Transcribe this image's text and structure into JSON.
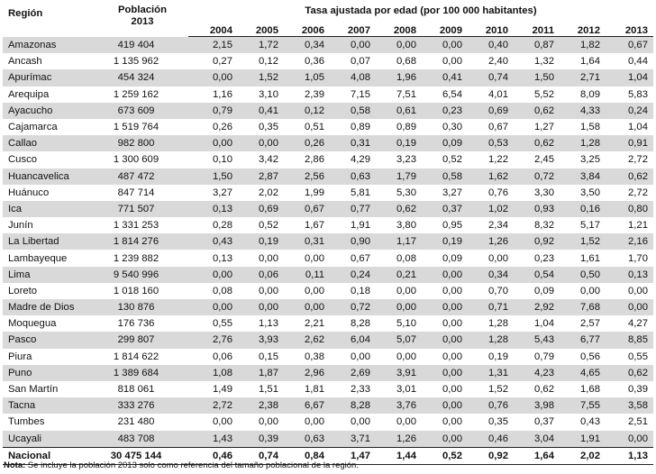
{
  "header": {
    "region_label": "Región",
    "population_label": "Población",
    "population_year": "2013",
    "rate_label": "Tasa ajustada por edad (por 100 000 habitantes)",
    "years": [
      "2004",
      "2005",
      "2006",
      "2007",
      "2008",
      "2009",
      "2010",
      "2011",
      "2012",
      "2013"
    ]
  },
  "rows": [
    {
      "region": "Amazonas",
      "population": "419 404",
      "rates": [
        "2,15",
        "1,72",
        "0,34",
        "0,00",
        "0,00",
        "0,00",
        "0,40",
        "0,87",
        "1,82",
        "0,67"
      ]
    },
    {
      "region": "Ancash",
      "population": "1 135 962",
      "rates": [
        "0,27",
        "0,12",
        "0,36",
        "0,07",
        "0,68",
        "0,00",
        "2,40",
        "1,32",
        "1,64",
        "0,44"
      ]
    },
    {
      "region": "Apurímac",
      "population": "454 324",
      "rates": [
        "0,00",
        "1,52",
        "1,05",
        "4,08",
        "1,96",
        "0,41",
        "0,74",
        "1,50",
        "2,71",
        "1,04"
      ]
    },
    {
      "region": "Arequipa",
      "population": "1 259 162",
      "rates": [
        "1,16",
        "3,10",
        "2,39",
        "7,15",
        "7,51",
        "6,54",
        "4,01",
        "5,52",
        "8,09",
        "5,83"
      ]
    },
    {
      "region": "Ayacucho",
      "population": "673 609",
      "rates": [
        "0,79",
        "0,41",
        "0,12",
        "0,58",
        "0,61",
        "0,23",
        "0,69",
        "0,62",
        "4,33",
        "0,24"
      ]
    },
    {
      "region": "Cajamarca",
      "population": "1 519 764",
      "rates": [
        "0,26",
        "0,35",
        "0,51",
        "0,89",
        "0,89",
        "0,30",
        "0,67",
        "1,27",
        "1,58",
        "1,04"
      ]
    },
    {
      "region": "Callao",
      "population": "982 800",
      "rates": [
        "0,00",
        "0,00",
        "0,26",
        "0,31",
        "0,19",
        "0,09",
        "0,53",
        "0,62",
        "1,28",
        "0,91"
      ]
    },
    {
      "region": "Cusco",
      "population": "1 300 609",
      "rates": [
        "0,10",
        "3,42",
        "2,86",
        "4,29",
        "3,23",
        "0,52",
        "1,22",
        "2,45",
        "3,25",
        "2,72"
      ]
    },
    {
      "region": "Huancavelica",
      "population": "487 472",
      "rates": [
        "1,50",
        "2,87",
        "2,56",
        "0,63",
        "1,79",
        "0,58",
        "1,62",
        "0,72",
        "3,84",
        "0,62"
      ]
    },
    {
      "region": "Huánuco",
      "population": "847 714",
      "rates": [
        "3,27",
        "2,02",
        "1,99",
        "5,81",
        "5,30",
        "3,27",
        "0,76",
        "3,30",
        "3,50",
        "2,72"
      ]
    },
    {
      "region": "Ica",
      "population": "771 507",
      "rates": [
        "0,13",
        "0,69",
        "0,67",
        "0,77",
        "0,62",
        "0,37",
        "1,02",
        "0,93",
        "0,16",
        "0,80"
      ]
    },
    {
      "region": "Junín",
      "population": "1 331 253",
      "rates": [
        "0,28",
        "0,52",
        "1,67",
        "1,91",
        "3,80",
        "0,95",
        "2,34",
        "8,32",
        "5,17",
        "1,21"
      ]
    },
    {
      "region": "La Libertad",
      "population": "1 814 276",
      "rates": [
        "0,43",
        "0,19",
        "0,31",
        "0,90",
        "1,17",
        "0,19",
        "1,26",
        "0,92",
        "1,52",
        "2,16"
      ]
    },
    {
      "region": "Lambayeque",
      "population": "1 239 882",
      "rates": [
        "0,13",
        "0,00",
        "0,00",
        "0,67",
        "0,08",
        "0,09",
        "0,00",
        "0,23",
        "1,61",
        "1,70"
      ]
    },
    {
      "region": "Lima",
      "population": "9 540 996",
      "rates": [
        "0,00",
        "0,06",
        "0,11",
        "0,24",
        "0,21",
        "0,00",
        "0,34",
        "0,54",
        "0,50",
        "0,13"
      ]
    },
    {
      "region": "Loreto",
      "population": "1 018 160",
      "rates": [
        "0,08",
        "0,00",
        "0,00",
        "0,18",
        "0,00",
        "0,00",
        "0,70",
        "0,09",
        "0,00",
        "0,00"
      ]
    },
    {
      "region": "Madre de Dios",
      "population": "130 876",
      "rates": [
        "0,00",
        "0,00",
        "0,00",
        "0,72",
        "0,00",
        "0,00",
        "0,71",
        "2,92",
        "7,68",
        "0,00"
      ]
    },
    {
      "region": "Moquegua",
      "population": "176 736",
      "rates": [
        "0,55",
        "1,13",
        "2,21",
        "8,28",
        "5,10",
        "0,00",
        "1,28",
        "1,04",
        "2,57",
        "4,27"
      ]
    },
    {
      "region": "Pasco",
      "population": "299 807",
      "rates": [
        "2,76",
        "3,93",
        "2,62",
        "6,04",
        "5,07",
        "0,00",
        "1,28",
        "5,43",
        "6,77",
        "8,85"
      ]
    },
    {
      "region": "Piura",
      "population": "1 814 622",
      "rates": [
        "0,06",
        "0,15",
        "0,38",
        "0,00",
        "0,00",
        "0,00",
        "0,19",
        "0,79",
        "0,56",
        "0,55"
      ]
    },
    {
      "region": "Puno",
      "population": "1 389 684",
      "rates": [
        "1,08",
        "1,87",
        "2,96",
        "2,69",
        "3,91",
        "0,00",
        "1,31",
        "4,23",
        "4,65",
        "0,62"
      ]
    },
    {
      "region": "San Martín",
      "population": "818 061",
      "rates": [
        "1,49",
        "1,51",
        "1,81",
        "2,33",
        "3,01",
        "0,00",
        "1,52",
        "0,62",
        "1,68",
        "0,39"
      ]
    },
    {
      "region": "Tacna",
      "population": "333 276",
      "rates": [
        "2,72",
        "2,38",
        "6,67",
        "8,28",
        "3,76",
        "0,00",
        "0,76",
        "3,98",
        "7,55",
        "3,58"
      ]
    },
    {
      "region": "Tumbes",
      "population": "231 480",
      "rates": [
        "0,00",
        "0,00",
        "0,00",
        "0,00",
        "0,00",
        "0,00",
        "0,35",
        "0,37",
        "0,43",
        "2,51"
      ]
    },
    {
      "region": "Ucayali",
      "population": "483 708",
      "rates": [
        "1,43",
        "0,39",
        "0,63",
        "3,71",
        "1,26",
        "0,00",
        "0,46",
        "3,04",
        "1,91",
        "0,00"
      ]
    }
  ],
  "total": {
    "region": "Nacional",
    "population": "30 475 144",
    "rates": [
      "0,46",
      "0,74",
      "0,84",
      "1,47",
      "1,44",
      "0,52",
      "0,92",
      "1,64",
      "2,02",
      "1,13"
    ]
  },
  "note": {
    "label": "Nota:",
    "text": " Se incluye la población 2013 solo como referencia del tamaño poblacional de la región."
  }
}
